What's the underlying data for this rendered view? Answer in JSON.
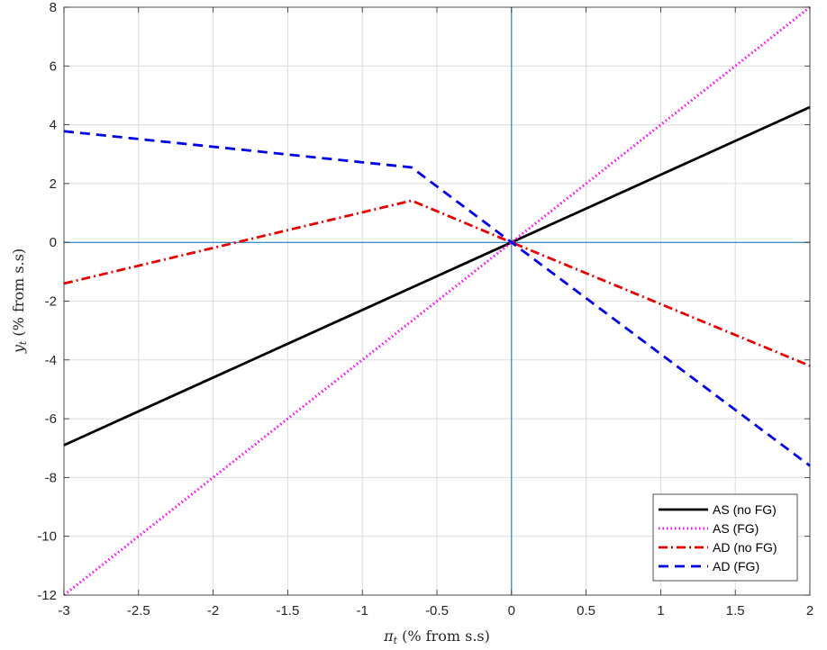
{
  "chart_data": {
    "type": "line",
    "xlabel": {
      "main": "π",
      "sub": "t",
      "rest": " (% from s.s)"
    },
    "ylabel": {
      "main": "y",
      "sub": "t",
      "rest": " (% from s.s)"
    },
    "xlim": [
      -3,
      2
    ],
    "ylim": [
      -12,
      8
    ],
    "xticks": [
      -3,
      -2.5,
      -2,
      -1.5,
      -1,
      -0.5,
      0,
      0.5,
      1,
      1.5,
      2
    ],
    "yticks": [
      -12,
      -10,
      -8,
      -6,
      -4,
      -2,
      0,
      2,
      4,
      6,
      8
    ],
    "xtick_labels": [
      "-3",
      "-2.5",
      "-2",
      "-1.5",
      "-1",
      "-0.5",
      "0",
      "0.5",
      "1",
      "1.5",
      "2"
    ],
    "ytick_labels": [
      "-12",
      "-10",
      "-8",
      "-6",
      "-4",
      "-2",
      "0",
      "2",
      "4",
      "6",
      "8"
    ],
    "grid": true,
    "zero_lines": {
      "x": 0,
      "y": 0,
      "color": "#0072BD"
    },
    "legend_position": "bottom-right",
    "series": [
      {
        "name": "AS (no FG)",
        "color": "#000000",
        "style": "solid",
        "x": [
          -3,
          2
        ],
        "y": [
          -6.9,
          4.6
        ]
      },
      {
        "name": "AS (FG)",
        "color": "#FF00FF",
        "style": "dotted",
        "x": [
          -3,
          2
        ],
        "y": [
          -12,
          8
        ]
      },
      {
        "name": "AD (no FG)",
        "color": "#E60000",
        "style": "dashdot",
        "x": [
          -3,
          -0.67,
          0,
          2
        ],
        "y": [
          -1.4,
          1.42,
          0,
          -4.2
        ]
      },
      {
        "name": "AD (FG)",
        "color": "#0000E6",
        "style": "dashed",
        "x": [
          -3,
          -0.67,
          0,
          2
        ],
        "y": [
          3.78,
          2.55,
          0,
          -7.6
        ]
      }
    ]
  }
}
